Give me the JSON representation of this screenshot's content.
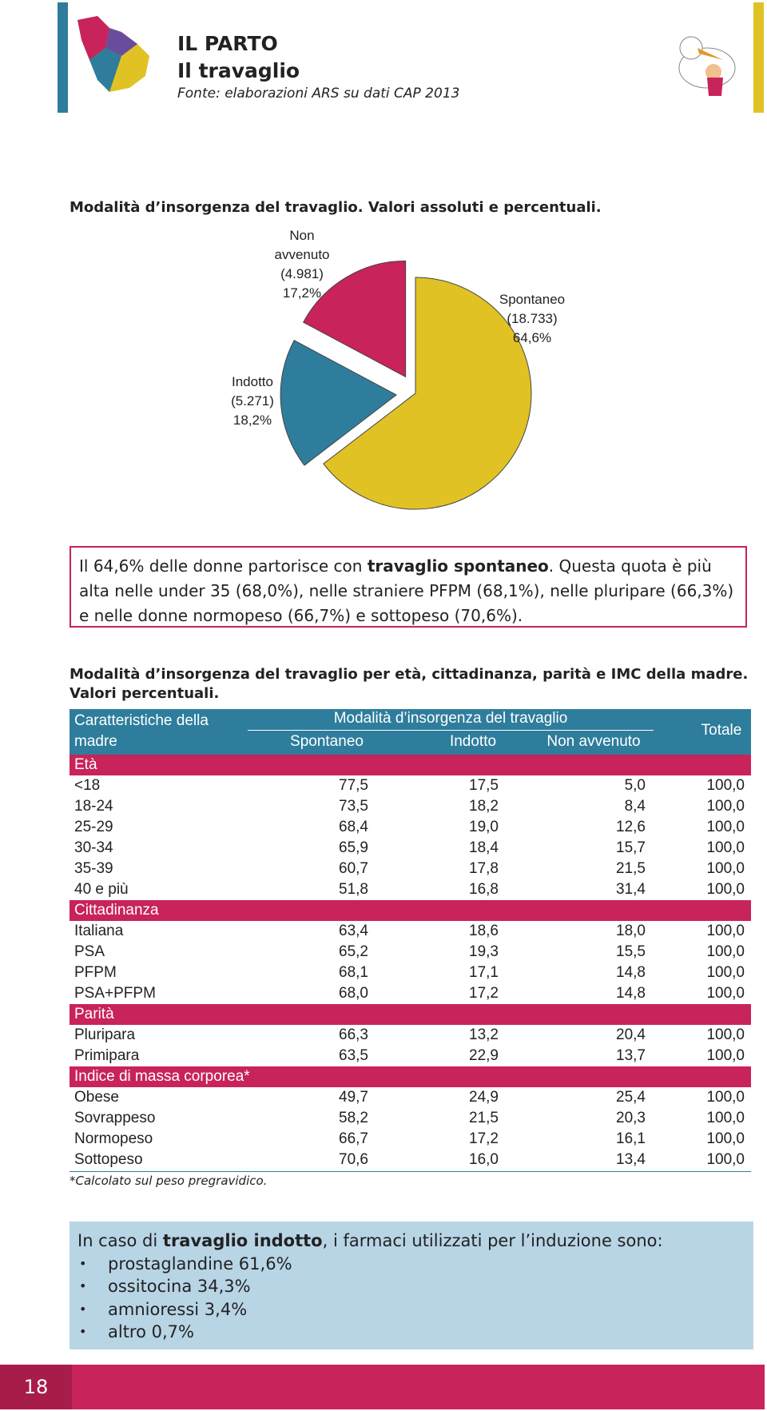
{
  "header": {
    "title": "IL PARTO",
    "subtitle": "Il travaglio",
    "source": "Fonte: elaborazioni ARS su dati CAP 2013"
  },
  "chart_data": {
    "type": "pie",
    "title": "Modalità d’insorgenza del travaglio. Valori assoluti e percentuali.",
    "categories": [
      "Spontaneo",
      "Indotto",
      "Non avvenuto"
    ],
    "values": [
      64.6,
      18.2,
      17.2
    ],
    "value_labels": [
      "64,6%",
      "18,2%",
      "17,2%"
    ],
    "counts": [
      18733,
      5271,
      4981
    ],
    "count_labels": [
      "(18.733)",
      "(5.271)",
      "(4.981)"
    ],
    "colors": [
      "#e0c224",
      "#2e7d9c",
      "#c8235a"
    ]
  },
  "callout": {
    "parts": [
      "Il 64,6% delle donne partorisce con ",
      "travaglio spontaneo",
      ". Questa quota è più alta nelle under 35 (68,0%), nelle straniere PFPM (68,1%), nelle pluripare (66,3%) e nelle donne normopeso (66,7%) e sottopeso (70,6%)."
    ]
  },
  "table": {
    "title": "Modalità d’insorgenza del travaglio per età, cittadinanza, parità e IMC della madre. Valori percentuali.",
    "row_header": "Caratteristiche della madre",
    "group_header": "Modalità d’insorgenza del travaglio",
    "columns": [
      "Spontaneo",
      "Indotto",
      "Non avvenuto"
    ],
    "total_header": "Totale",
    "groups": [
      {
        "name": "Età",
        "rows": [
          [
            "<18",
            "77,5",
            "17,5",
            "5,0",
            "100,0"
          ],
          [
            "18-24",
            "73,5",
            "18,2",
            "8,4",
            "100,0"
          ],
          [
            "25-29",
            "68,4",
            "19,0",
            "12,6",
            "100,0"
          ],
          [
            "30-34",
            "65,9",
            "18,4",
            "15,7",
            "100,0"
          ],
          [
            "35-39",
            "60,7",
            "17,8",
            "21,5",
            "100,0"
          ],
          [
            "40 e più",
            "51,8",
            "16,8",
            "31,4",
            "100,0"
          ]
        ]
      },
      {
        "name": "Cittadinanza",
        "rows": [
          [
            "Italiana",
            "63,4",
            "18,6",
            "18,0",
            "100,0"
          ],
          [
            "PSA",
            "65,2",
            "19,3",
            "15,5",
            "100,0"
          ],
          [
            "PFPM",
            "68,1",
            "17,1",
            "14,8",
            "100,0"
          ],
          [
            "PSA+PFPM",
            "68,0",
            "17,2",
            "14,8",
            "100,0"
          ]
        ]
      },
      {
        "name": "Parità",
        "rows": [
          [
            "Pluripara",
            "66,3",
            "13,2",
            "20,4",
            "100,0"
          ],
          [
            "Primipara",
            "63,5",
            "22,9",
            "13,7",
            "100,0"
          ]
        ]
      },
      {
        "name": "Indice di massa corporea*",
        "rows": [
          [
            "Obese",
            "49,7",
            "24,9",
            "25,4",
            "100,0"
          ],
          [
            "Sovrappeso",
            "58,2",
            "21,5",
            "20,3",
            "100,0"
          ],
          [
            "Normopeso",
            "66,7",
            "17,2",
            "16,1",
            "100,0"
          ],
          [
            "Sottopeso",
            "70,6",
            "16,0",
            "13,4",
            "100,0"
          ]
        ]
      }
    ],
    "note": "*Calcolato sul peso pregravidico."
  },
  "box": {
    "intro": [
      "In caso di ",
      "travaglio indotto",
      ", i farmaci utilizzati per l’induzione sono:"
    ],
    "items": [
      "prostaglandine 61,6%",
      "ossitocina 34,3%",
      "amnioressi 3,4%",
      "altro 0,7%"
    ]
  },
  "page_number": "18"
}
